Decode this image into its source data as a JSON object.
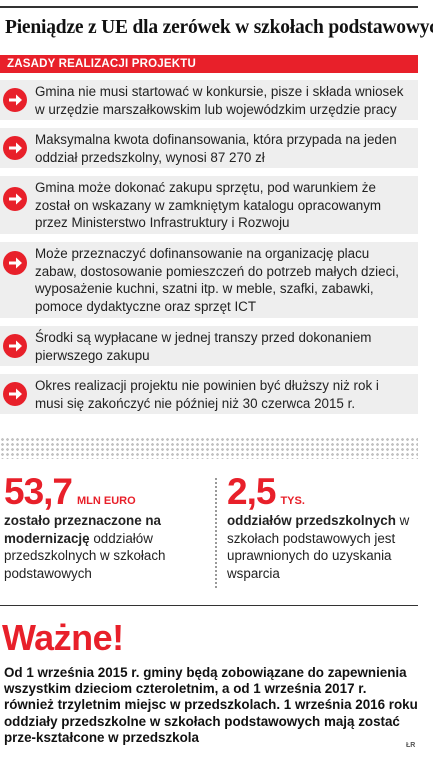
{
  "title": "Pieniądze z UE dla zerówek w szkołach podstawowych",
  "section_header": "ZASADY REALIZACJI PROJEKTU",
  "items": [
    {
      "text": "Gmina nie musi startować w konkursie, pisze i składa wniosek w urzędzie marszałkowskim lub wojewódzkim urzędzie pracy"
    },
    {
      "text": "Maksymalna kwota dofinansowania, która przypada na jeden oddział przedszkolny, wynosi 87 270 zł"
    },
    {
      "text": "Gmina może dokonać zakupu sprzętu, pod warunkiem że został on wskazany w zamkniętym katalogu opracowanym przez Ministerstwo Infrastruktury i Rozwoju"
    },
    {
      "text": "Może przeznaczyć dofinansowanie na organizację placu zabaw, dostosowanie pomieszczeń do potrzeb małych dzieci, wyposażenie kuchni, szatni itp. w meble, szafki, zabawki, pomoce dydaktyczne oraz sprzęt ICT"
    },
    {
      "text": "Środki są wypłacane w jednej transzy przed dokonaniem pierwszego zakupu"
    },
    {
      "text": "Okres realizacji projektu nie powinien być dłuższy niż rok i musi się zakończyć nie później niż 30 czerwca 2015 r."
    }
  ],
  "item_icon": "arrow-right-icon",
  "stats": [
    {
      "value": "53,7",
      "unit": "MLN EURO",
      "desc_bold": "zostało przeznaczone na modernizację",
      "desc_rest": " oddziałów przedszkolnych w szkołach podstawowych"
    },
    {
      "value": "2,5",
      "unit": "TYS.",
      "desc_bold": "oddziałów przedszkolnych",
      "desc_rest": " w szkołach podstawowych jest uprawnionych do uzyskania wsparcia"
    }
  ],
  "important": {
    "heading": "Ważne!",
    "text": "Od 1 września 2015 r. gminy będą zobowiązane do zapewnienia wszystkim dzieciom czteroletnim, a od 1 września 2017 r. również trzyletnim miejsc w przedszkolach. 1 września 2016 roku oddziały przedszkolne w szkołach podstawowych mają zostać prze-kształcone w przedszkola"
  },
  "credit": "ŁR",
  "colors": {
    "accent": "#e8202a",
    "box_bg": "#eeeeee"
  }
}
